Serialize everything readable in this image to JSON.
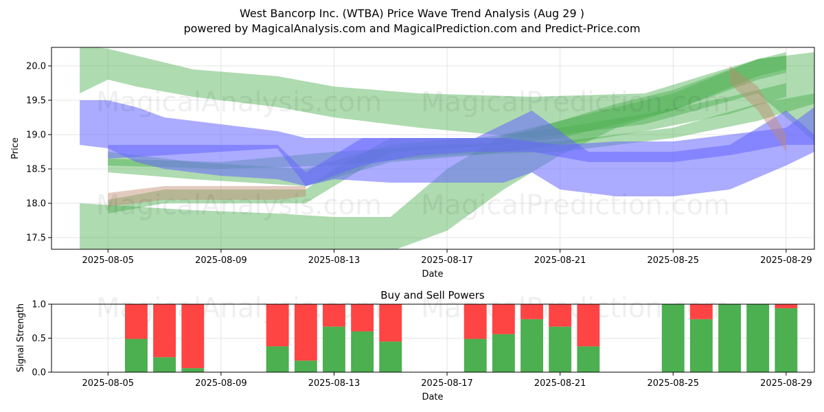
{
  "header": {
    "title": "West Bancorp Inc. (WTBA) Price Wave Trend Analysis (Aug 29 )",
    "subtitle": "powered by MagicalAnalysis.com and MagicalPrediction.com and Predict-Price.com"
  },
  "watermarks": [
    "MagicalAnalysis.com",
    "MagicalPrediction.com"
  ],
  "colors": {
    "green_band": "#4caf50",
    "blue_band": "#6666ff",
    "brown_band": "#c08a70",
    "buy": "#4caf50",
    "sell": "#ff4444",
    "grid": "#dddddd"
  },
  "chart_data": [
    {
      "type": "area",
      "title": "",
      "xlabel": "Date",
      "ylabel": "Price",
      "xlim": [
        "2025-08-03",
        "2025-08-30"
      ],
      "ylim": [
        17.33,
        20.27
      ],
      "x_ticks": [
        "2025-08-05",
        "2025-08-09",
        "2025-08-13",
        "2025-08-17",
        "2025-08-21",
        "2025-08-25",
        "2025-08-29"
      ],
      "y_ticks": [
        17.5,
        18.0,
        18.5,
        19.0,
        19.5,
        20.0
      ],
      "grid": true,
      "series": [
        {
          "color": "green",
          "x": [
            "2025-08-04",
            "2025-08-05",
            "2025-08-06",
            "2025-08-08",
            "2025-08-11",
            "2025-08-13",
            "2025-08-16",
            "2025-08-20",
            "2025-08-24",
            "2025-08-28",
            "2025-08-30"
          ],
          "lower": [
            19.6,
            19.8,
            19.7,
            19.55,
            19.4,
            19.25,
            19.1,
            18.95,
            19.15,
            19.6,
            18.9
          ],
          "upper": [
            20.3,
            20.25,
            20.15,
            19.95,
            19.85,
            19.7,
            19.6,
            19.55,
            19.6,
            20.1,
            20.2
          ]
        },
        {
          "color": "green",
          "x": [
            "2025-08-04",
            "2025-08-06",
            "2025-08-08",
            "2025-08-11",
            "2025-08-13",
            "2025-08-15",
            "2025-08-17",
            "2025-08-19",
            "2025-08-21",
            "2025-08-23",
            "2025-08-25",
            "2025-08-28",
            "2025-08-29"
          ],
          "lower": [
            17.3,
            17.3,
            17.3,
            17.3,
            17.3,
            17.3,
            17.6,
            18.2,
            18.7,
            19.1,
            19.35,
            19.8,
            19.9
          ],
          "upper": [
            18.0,
            17.95,
            17.9,
            17.85,
            17.8,
            17.8,
            18.5,
            19.0,
            19.2,
            19.45,
            19.65,
            20.1,
            20.2
          ]
        },
        {
          "color": "green",
          "x": [
            "2025-08-05",
            "2025-08-07",
            "2025-08-09",
            "2025-08-11",
            "2025-08-12",
            "2025-08-13",
            "2025-08-15",
            "2025-08-17",
            "2025-08-19",
            "2025-08-21",
            "2025-08-23",
            "2025-08-25",
            "2025-08-28",
            "2025-08-29"
          ],
          "lower": [
            17.85,
            18.0,
            18.0,
            18.0,
            18.0,
            18.25,
            18.75,
            18.8,
            18.85,
            18.95,
            19.15,
            19.35,
            19.85,
            19.95
          ],
          "upper": [
            18.05,
            18.2,
            18.2,
            18.2,
            18.2,
            18.5,
            18.95,
            18.95,
            18.95,
            19.2,
            19.4,
            19.6,
            20.1,
            20.15
          ]
        },
        {
          "color": "green",
          "x": [
            "2025-08-05",
            "2025-08-08",
            "2025-08-12",
            "2025-08-15",
            "2025-08-18",
            "2025-08-21",
            "2025-08-24",
            "2025-08-27",
            "2025-08-29"
          ],
          "lower": [
            18.45,
            18.35,
            18.25,
            18.6,
            18.7,
            18.85,
            19.05,
            19.3,
            19.55
          ],
          "upper": [
            18.75,
            18.6,
            18.5,
            18.85,
            18.95,
            19.1,
            19.3,
            19.55,
            19.75
          ]
        },
        {
          "color": "green",
          "x": [
            "2025-08-05",
            "2025-08-09",
            "2025-08-13",
            "2025-08-17",
            "2025-08-21",
            "2025-08-25",
            "2025-08-28",
            "2025-08-30"
          ],
          "lower": [
            18.55,
            18.5,
            18.55,
            18.7,
            18.75,
            18.95,
            19.2,
            19.45
          ],
          "upper": [
            18.65,
            18.6,
            18.75,
            18.85,
            18.9,
            19.1,
            19.45,
            19.6
          ]
        },
        {
          "color": "blue",
          "x": [
            "2025-08-04",
            "2025-08-05",
            "2025-08-06",
            "2025-08-07",
            "2025-08-09",
            "2025-08-11",
            "2025-08-12",
            "2025-08-13",
            "2025-08-15",
            "2025-08-17",
            "2025-08-19",
            "2025-08-20",
            "2025-08-21",
            "2025-08-23",
            "2025-08-25",
            "2025-08-27",
            "2025-08-29",
            "2025-08-30"
          ],
          "lower": [
            18.85,
            18.8,
            18.6,
            18.5,
            18.4,
            18.35,
            18.25,
            18.35,
            18.3,
            18.3,
            18.3,
            18.45,
            18.2,
            18.1,
            18.1,
            18.2,
            18.55,
            18.75
          ],
          "upper": [
            19.5,
            19.5,
            19.4,
            19.25,
            19.15,
            19.05,
            18.95,
            18.95,
            18.95,
            18.95,
            18.95,
            18.9,
            18.85,
            18.9,
            18.9,
            19.0,
            19.1,
            19.4
          ]
        },
        {
          "color": "blue",
          "x": [
            "2025-08-05",
            "2025-08-07",
            "2025-08-09",
            "2025-08-11",
            "2025-08-12",
            "2025-08-14",
            "2025-08-16",
            "2025-08-18",
            "2025-08-20",
            "2025-08-22",
            "2025-08-25",
            "2025-08-27",
            "2025-08-29",
            "2025-08-30"
          ],
          "lower": [
            18.65,
            18.7,
            18.75,
            18.8,
            18.25,
            18.55,
            18.7,
            18.75,
            18.75,
            18.6,
            18.6,
            18.7,
            18.85,
            18.85
          ],
          "upper": [
            18.85,
            18.85,
            18.85,
            18.85,
            18.45,
            18.95,
            18.95,
            18.95,
            19.35,
            18.75,
            18.75,
            18.85,
            19.35,
            19.0
          ]
        },
        {
          "color": "brown",
          "x": [
            "2025-08-05",
            "2025-08-07",
            "2025-08-09",
            "2025-08-11",
            "2025-08-12"
          ],
          "lower": [
            17.95,
            18.05,
            18.05,
            18.05,
            18.1
          ],
          "upper": [
            18.15,
            18.25,
            18.25,
            18.25,
            18.25
          ]
        },
        {
          "color": "brown",
          "x": [
            "2025-08-27",
            "2025-08-28",
            "2025-08-29"
          ],
          "lower": [
            19.75,
            19.35,
            18.75
          ],
          "upper": [
            20.0,
            19.7,
            19.0
          ]
        }
      ]
    },
    {
      "type": "bar",
      "title": "Buy and Sell Powers",
      "xlabel": "Date",
      "ylabel": "Signal Strength",
      "ylim": [
        0,
        1.0
      ],
      "x_ticks": [
        "2025-08-05",
        "2025-08-09",
        "2025-08-13",
        "2025-08-17",
        "2025-08-21",
        "2025-08-25",
        "2025-08-29"
      ],
      "y_ticks": [
        0.0,
        0.5,
        1.0
      ],
      "grid": true,
      "categories": [
        "2025-08-06",
        "2025-08-07",
        "2025-08-08",
        "2025-08-11",
        "2025-08-12",
        "2025-08-13",
        "2025-08-14",
        "2025-08-15",
        "2025-08-18",
        "2025-08-19",
        "2025-08-20",
        "2025-08-21",
        "2025-08-22",
        "2025-08-25",
        "2025-08-26",
        "2025-08-27",
        "2025-08-28",
        "2025-08-29"
      ],
      "series": [
        {
          "role": "buy",
          "values": [
            0.49,
            0.22,
            0.06,
            0.38,
            0.17,
            0.67,
            0.6,
            0.45,
            0.49,
            0.56,
            0.78,
            0.67,
            0.38,
            1.0,
            0.78,
            1.0,
            1.0,
            0.94
          ]
        },
        {
          "role": "sell",
          "values": [
            0.51,
            0.78,
            0.94,
            0.62,
            0.83,
            0.33,
            0.4,
            0.55,
            0.51,
            0.44,
            0.22,
            0.33,
            0.62,
            0.0,
            0.22,
            0.0,
            0.0,
            0.06
          ]
        }
      ]
    }
  ]
}
